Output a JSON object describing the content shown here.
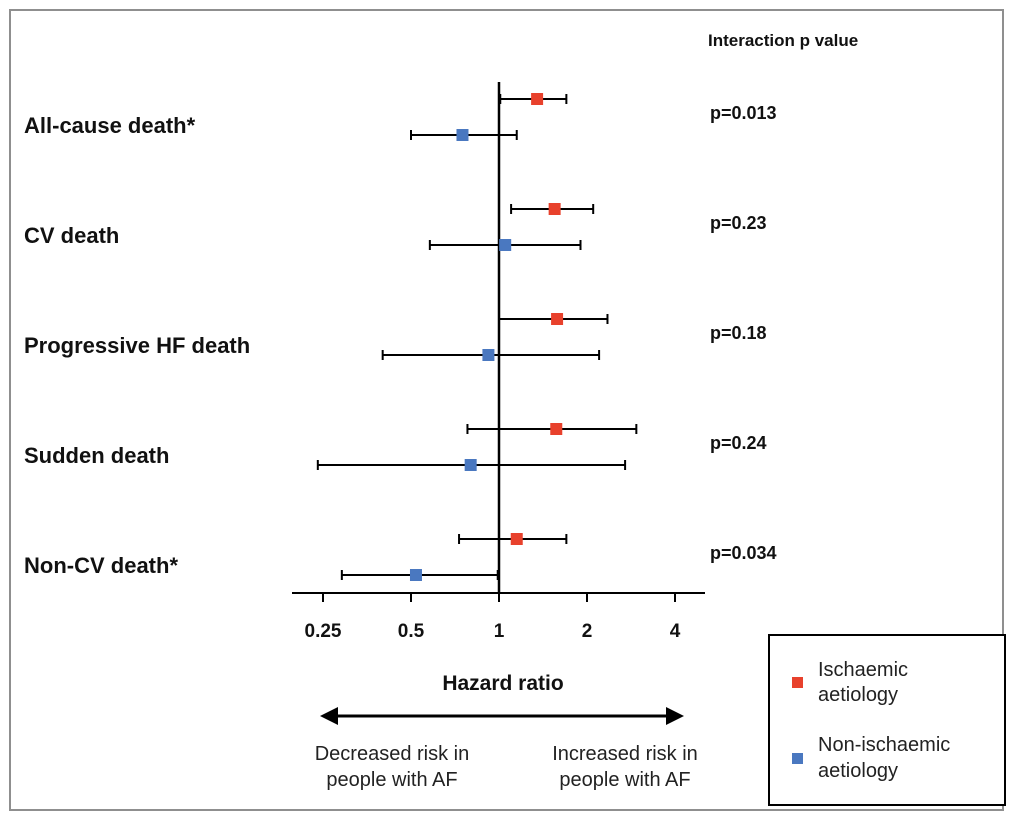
{
  "chart_data": {
    "type": "forest",
    "header": "Interaction p value",
    "xlabel": "Hazard ratio",
    "scale": "log2",
    "xlim": [
      0.2,
      5.5
    ],
    "xticks": [
      {
        "value": 0.25,
        "label": "0.25"
      },
      {
        "value": 0.5,
        "label": "0.5"
      },
      {
        "value": 1,
        "label": "1"
      },
      {
        "value": 2,
        "label": "2"
      },
      {
        "value": 4,
        "label": "4"
      }
    ],
    "reference_line": 1,
    "direction_left": [
      "Decreased risk in",
      "people with AF"
    ],
    "direction_right": [
      "Increased risk in",
      "people with AF"
    ],
    "series": [
      {
        "name": "Ischaemic aetiology",
        "legend_lines": [
          "Ischaemic",
          "aetiology"
        ],
        "color": "#e8412c"
      },
      {
        "name": "Non-ischaemic aetiology",
        "legend_lines": [
          "Non-ischaemic",
          "aetiology"
        ],
        "color": "#4a78c0"
      }
    ],
    "outcomes": [
      {
        "label": "All-cause death*",
        "p_value": "p=0.013",
        "estimates": [
          {
            "series": 0,
            "hr": 1.35,
            "lower": 1.01,
            "upper": 1.7
          },
          {
            "series": 1,
            "hr": 0.75,
            "lower": 0.5,
            "upper": 1.15
          }
        ]
      },
      {
        "label": "CV death",
        "p_value": "p=0.23",
        "estimates": [
          {
            "series": 0,
            "hr": 1.55,
            "lower": 1.1,
            "upper": 2.1
          },
          {
            "series": 1,
            "hr": 1.05,
            "lower": 0.58,
            "upper": 1.9
          }
        ]
      },
      {
        "label": "Progressive HF death",
        "p_value": "p=0.18",
        "estimates": [
          {
            "series": 0,
            "hr": 1.58,
            "lower": 1.0,
            "upper": 2.35
          },
          {
            "series": 1,
            "hr": 0.92,
            "lower": 0.4,
            "upper": 2.2
          }
        ]
      },
      {
        "label": "Sudden death",
        "p_value": "p=0.24",
        "estimates": [
          {
            "series": 0,
            "hr": 1.57,
            "lower": 0.78,
            "upper": 2.95
          },
          {
            "series": 1,
            "hr": 0.8,
            "lower": 0.24,
            "upper": 2.7
          }
        ]
      },
      {
        "label": "Non-CV death*",
        "p_value": "p=0.034",
        "estimates": [
          {
            "series": 0,
            "hr": 1.15,
            "lower": 0.73,
            "upper": 1.7
          },
          {
            "series": 1,
            "hr": 0.52,
            "lower": 0.29,
            "upper": 0.99
          }
        ]
      }
    ]
  }
}
